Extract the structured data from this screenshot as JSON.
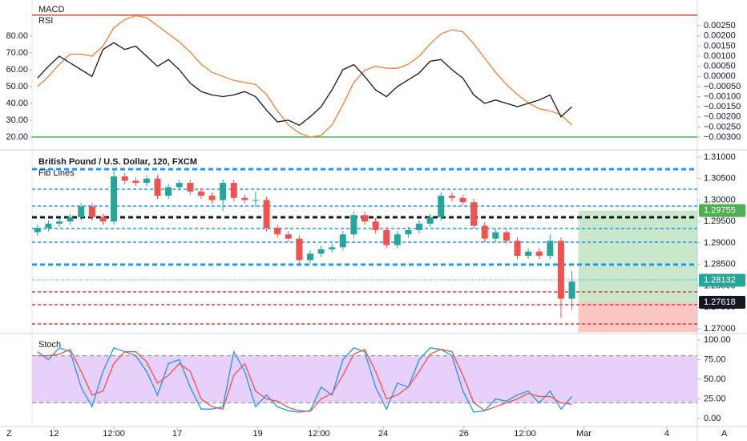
{
  "toolbar": {
    "left": "Z",
    "right": "A"
  },
  "chart_data": [
    {
      "type": "line",
      "series": [
        {
          "name": "MACD",
          "color": "#f57f3a",
          "axis": "y2",
          "values": [
            -0.0005,
            0.0,
            0.0006,
            0.0011,
            0.0011,
            0.001,
            0.0015,
            0.0024,
            0.0028,
            0.003,
            0.0029,
            0.0025,
            0.0021,
            0.0017,
            0.0012,
            0.0006,
            0.0002,
            0.0,
            -0.0002,
            -0.0003,
            -0.0004,
            -0.0009,
            -0.0017,
            -0.0024,
            -0.0028,
            -0.003,
            -0.0029,
            -0.0024,
            -0.0014,
            -0.0003,
            0.0003,
            0.0005,
            0.0004,
            0.0004,
            0.0006,
            0.001,
            0.0016,
            0.0021,
            0.0023,
            0.0022,
            0.0016,
            0.0009,
            0.0002,
            -0.0004,
            -0.0009,
            -0.0013,
            -0.0016,
            -0.0017,
            -0.0019,
            -0.0024
          ]
        },
        {
          "name": "RSI",
          "color": "#131722",
          "values": [
            55,
            62,
            68,
            64,
            60,
            56,
            72,
            76,
            72,
            74,
            68,
            62,
            66,
            60,
            52,
            47,
            45,
            44,
            45,
            47,
            44,
            36,
            29,
            30,
            27,
            32,
            38,
            48,
            60,
            63,
            56,
            48,
            44,
            50,
            54,
            58,
            65,
            66,
            60,
            55,
            45,
            40,
            42,
            40,
            38,
            40,
            42,
            45,
            32,
            38
          ]
        }
      ],
      "ylim": [
        13.3,
        101.4
      ],
      "yticks": [
        {
          "value": 20,
          "label": "20.00"
        },
        {
          "value": 30,
          "label": "30.00"
        },
        {
          "value": 40,
          "label": "40.00"
        },
        {
          "value": 50,
          "label": "50.00"
        },
        {
          "value": 60,
          "label": "60.00"
        },
        {
          "value": 70,
          "label": "70.00"
        },
        {
          "value": 80,
          "label": "80.00"
        }
      ],
      "y2lim": [
        -0.00355,
        0.00377
      ],
      "y2ticks": [
        {
          "value": 0.0025,
          "label": "0.00250"
        },
        {
          "value": 0.002,
          "label": "0.00200"
        },
        {
          "value": 0.0015,
          "label": "0.00150"
        },
        {
          "value": 0.001,
          "label": "0.00100"
        },
        {
          "value": 0.0005,
          "label": "0.00050"
        },
        {
          "value": 0,
          "label": "0.00000"
        },
        {
          "value": -0.0005,
          "label": "−0.00050"
        },
        {
          "value": -0.001,
          "label": "−0.00100"
        },
        {
          "value": -0.0015,
          "label": "−0.00150"
        },
        {
          "value": -0.002,
          "label": "−0.00200"
        },
        {
          "value": -0.0025,
          "label": "−0.00250"
        },
        {
          "value": -0.003,
          "label": "−0.00300"
        }
      ],
      "levels": [
        {
          "value": 92.4,
          "color": "#f44336"
        },
        {
          "value": 20,
          "color": "#4caf50"
        }
      ]
    },
    {
      "type": "candlestick",
      "title": "British Pound / U.S. Dollar, 120, FXCM",
      "annotation": "Fib Lines",
      "up_color": "#26a69a",
      "down_color": "#ef5350",
      "open": [
        1.2925,
        1.2935,
        1.2945,
        1.295,
        1.296,
        1.2985,
        1.296,
        1.295,
        1.3055,
        1.3045,
        1.304,
        1.305,
        1.301,
        1.303,
        1.304,
        1.302,
        1.301,
        1.3,
        1.304,
        1.3005,
        1.3,
        1.3,
        1.2935,
        1.292,
        1.291,
        1.286,
        1.2875,
        1.2885,
        1.289,
        1.292,
        1.2965,
        1.295,
        1.293,
        1.2895,
        1.292,
        1.293,
        1.2945,
        1.296,
        1.301,
        1.3005,
        1.2995,
        1.294,
        1.291,
        1.2925,
        1.2905,
        1.287,
        1.288,
        1.287,
        1.2905,
        1.277
      ],
      "high": [
        1.2943,
        1.2953,
        1.2958,
        1.2968,
        1.2993,
        1.2993,
        1.2968,
        1.3068,
        1.3063,
        1.3053,
        1.3058,
        1.3058,
        1.3038,
        1.3048,
        1.3048,
        1.3028,
        1.3018,
        1.3048,
        1.3048,
        1.3013,
        1.302,
        1.3008,
        1.2943,
        1.2928,
        1.2918,
        1.2883,
        1.2893,
        1.2898,
        1.2928,
        1.2973,
        1.2973,
        1.2958,
        1.2938,
        1.2928,
        1.2938,
        1.2953,
        1.2968,
        1.3018,
        1.3018,
        1.3013,
        1.3003,
        1.2948,
        1.2933,
        1.2933,
        1.2913,
        1.2888,
        1.2888,
        1.292,
        1.2913,
        1.2835
      ],
      "low": [
        1.2917,
        1.2927,
        1.2937,
        1.2942,
        1.2952,
        1.2952,
        1.2942,
        1.2942,
        1.3037,
        1.3032,
        1.3032,
        1.3002,
        1.3002,
        1.3022,
        1.3012,
        1.3002,
        1.2992,
        1.2975,
        1.2997,
        1.2992,
        1.2985,
        1.2927,
        1.2912,
        1.2902,
        1.2852,
        1.2852,
        1.2867,
        1.2877,
        1.2882,
        1.2912,
        1.2942,
        1.2922,
        1.2887,
        1.2887,
        1.2912,
        1.2922,
        1.2937,
        1.2952,
        1.2997,
        1.2987,
        1.2932,
        1.2902,
        1.2902,
        1.2897,
        1.2862,
        1.2862,
        1.2862,
        1.2862,
        1.2725,
        1.2745
      ],
      "close": [
        1.2935,
        1.2945,
        1.295,
        1.296,
        1.2985,
        1.296,
        1.295,
        1.3055,
        1.3045,
        1.304,
        1.305,
        1.301,
        1.303,
        1.304,
        1.302,
        1.301,
        1.3,
        1.304,
        1.3005,
        1.3,
        1.3,
        1.2935,
        1.292,
        1.291,
        1.286,
        1.2875,
        1.2885,
        1.289,
        1.292,
        1.2965,
        1.295,
        1.293,
        1.2895,
        1.292,
        1.293,
        1.2945,
        1.296,
        1.301,
        1.3005,
        1.2995,
        1.294,
        1.291,
        1.2925,
        1.2905,
        1.287,
        1.288,
        1.287,
        1.2905,
        1.277,
        1.281
      ],
      "ylim": [
        1.26907,
        1.31112
      ],
      "yticks": [
        {
          "value": 1.31,
          "label": "1.31000"
        },
        {
          "value": 1.305,
          "label": "1.30500"
        },
        {
          "value": 1.3,
          "label": "1.30000"
        },
        {
          "value": 1.295,
          "label": "1.29500"
        },
        {
          "value": 1.29,
          "label": "1.29000"
        },
        {
          "value": 1.285,
          "label": "1.28500"
        },
        {
          "value": 1.28,
          "label": "1.28000"
        },
        {
          "value": 1.275,
          "label": "1.27500"
        },
        {
          "value": 1.27,
          "label": "1.27000"
        }
      ],
      "levels": [
        {
          "value": 1.3072,
          "color": "#2196f3",
          "style": "thick"
        },
        {
          "value": 1.30252,
          "color": "#2196f3",
          "style": "dash"
        },
        {
          "value": 1.2986,
          "color": "#2196f3",
          "style": "dash"
        },
        {
          "value": 1.29598,
          "color": "#131722",
          "style": "thick"
        },
        {
          "value": 1.29336,
          "color": "#2196f3",
          "style": "dash"
        },
        {
          "value": 1.29019,
          "color": "#2196f3",
          "style": "dash"
        },
        {
          "value": 1.28495,
          "color": "#2196f3",
          "style": "thick"
        },
        {
          "value": 1.2814,
          "color": "#2196f3",
          "style": "dot"
        },
        {
          "value": 1.2786,
          "color": "#e53935",
          "style": "dash"
        },
        {
          "value": 1.27561,
          "color": "#e53935",
          "style": "dash"
        },
        {
          "value": 1.27112,
          "color": "#e53935",
          "style": "dash"
        }
      ],
      "position": {
        "target": 1.29755,
        "entry": 1.27618,
        "stop": 1.2692,
        "target_color": "#4caf50",
        "entry_color": "#131722",
        "stop_color": "#f44336"
      },
      "last_price": 1.28132,
      "last_price_color": "#26a69a"
    },
    {
      "type": "line",
      "title": "Stoch",
      "series": [
        {
          "color": "#2196f3",
          "values": [
            85,
            75,
            90,
            85,
            40,
            15,
            60,
            90,
            85,
            80,
            60,
            30,
            70,
            75,
            40,
            12,
            12,
            15,
            85,
            60,
            15,
            30,
            15,
            10,
            8,
            10,
            40,
            30,
            75,
            90,
            85,
            40,
            12,
            45,
            40,
            75,
            90,
            88,
            80,
            35,
            8,
            10,
            25,
            22,
            30,
            35,
            20,
            35,
            12,
            28
          ]
        },
        {
          "color": "#ef5350",
          "values": [
            80,
            80,
            82,
            88,
            60,
            30,
            35,
            70,
            85,
            85,
            72,
            45,
            55,
            70,
            60,
            25,
            15,
            12,
            55,
            70,
            35,
            25,
            22,
            14,
            10,
            9,
            25,
            32,
            55,
            82,
            88,
            60,
            25,
            30,
            40,
            60,
            82,
            88,
            85,
            55,
            20,
            10,
            15,
            20,
            25,
            32,
            28,
            28,
            20,
            18
          ]
        }
      ],
      "ylim": [
        -8.2,
        106.1
      ],
      "yticks": [
        {
          "value": 100,
          "label": "100.00"
        },
        {
          "value": 75,
          "label": "75.00"
        },
        {
          "value": 50,
          "label": "50.00"
        },
        {
          "value": 25,
          "label": "25.00"
        },
        {
          "value": 0,
          "label": "0.00"
        }
      ],
      "band": [
        20,
        80
      ],
      "band_color": "#e1c4f7",
      "xlim": [
        -0.5,
        60.5
      ],
      "xticks": [
        {
          "value": 1.5,
          "label": "12"
        },
        {
          "value": 7,
          "label": "12:00"
        },
        {
          "value": 12.8,
          "label": "17"
        },
        {
          "value": 20.2,
          "label": "19"
        },
        {
          "value": 25.8,
          "label": "12:00"
        },
        {
          "value": 31.7,
          "label": "24"
        },
        {
          "value": 39.1,
          "label": "26"
        },
        {
          "value": 44.7,
          "label": "12:00"
        },
        {
          "value": 50.1,
          "label": "Mar"
        },
        {
          "value": 57.7,
          "label": "4"
        }
      ]
    }
  ]
}
